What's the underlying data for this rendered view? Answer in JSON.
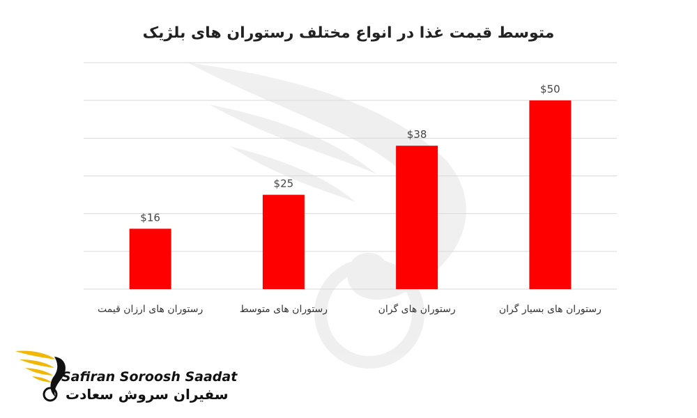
{
  "chart_data": {
    "type": "bar",
    "title": "متوسط قیمت غذا در انواع مختلف رستوران های بلژیک",
    "categories": [
      "رستوران های ارزان قیمت",
      "رستوران های متوسط",
      "رستوران های گران",
      "رستوران های بسیار گران"
    ],
    "values": [
      16,
      25,
      38,
      50
    ],
    "value_labels": [
      "$16",
      "$25",
      "$38",
      "$50"
    ],
    "xlabel": "",
    "ylabel": "",
    "ylim": [
      0,
      60
    ],
    "grid": true,
    "legend": "none",
    "bar_color": "#ff0000",
    "grid_color": "#d9d9d9"
  },
  "logo": {
    "latin": "Safiran Soroosh Saadat",
    "persian": "سفیران سروش سعادت",
    "accent": "#f2b705"
  }
}
